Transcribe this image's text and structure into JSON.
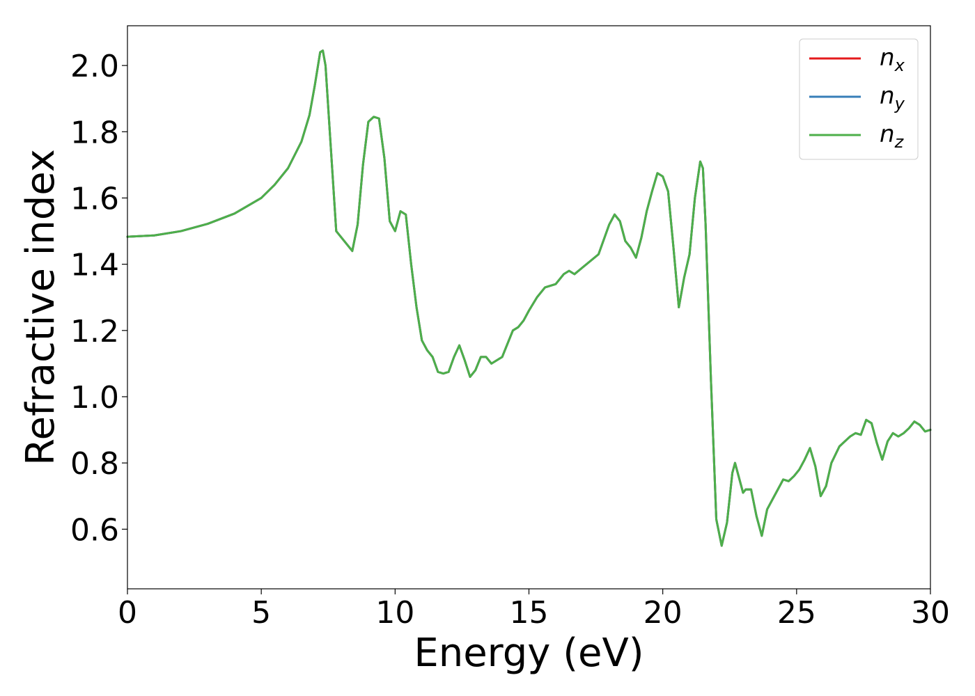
{
  "chart_data": {
    "type": "line",
    "xlabel": "Energy (eV)",
    "ylabel": "Refractive index",
    "xlim": [
      0,
      30
    ],
    "ylim": [
      0.42,
      2.12
    ],
    "xticks": [
      "0",
      "5",
      "10",
      "15",
      "20",
      "25",
      "30"
    ],
    "yticks": [
      "0.6",
      "0.8",
      "1.0",
      "1.2",
      "1.4",
      "1.6",
      "1.8",
      "2.0"
    ],
    "grid": false,
    "legend_position": "top-right",
    "series": [
      {
        "name": "n",
        "subscript": "x",
        "color": "#e41a1c",
        "x": [
          0,
          1,
          2,
          3,
          4,
          5,
          5.5,
          6,
          6.5,
          6.8,
          7.0,
          7.2,
          7.3,
          7.4,
          7.6,
          7.8,
          8.0,
          8.2,
          8.4,
          8.6,
          8.8,
          9.0,
          9.2,
          9.4,
          9.6,
          9.8,
          10.0,
          10.2,
          10.4,
          10.6,
          10.8,
          11.0,
          11.2,
          11.4,
          11.6,
          11.8,
          12.0,
          12.2,
          12.4,
          12.6,
          12.8,
          13.0,
          13.2,
          13.4,
          13.6,
          13.8,
          14.0,
          14.2,
          14.4,
          14.6,
          14.8,
          15.0,
          15.3,
          15.6,
          16.0,
          16.3,
          16.5,
          16.7,
          17.0,
          17.3,
          17.6,
          18.0,
          18.2,
          18.4,
          18.6,
          18.8,
          19.0,
          19.2,
          19.4,
          19.6,
          19.8,
          20.0,
          20.2,
          20.4,
          20.6,
          20.8,
          21.0,
          21.2,
          21.4,
          21.5,
          21.6,
          21.8,
          22.0,
          22.2,
          22.4,
          22.6,
          22.7,
          22.8,
          23.0,
          23.1,
          23.3,
          23.5,
          23.7,
          23.9,
          24.1,
          24.3,
          24.5,
          24.7,
          24.9,
          25.1,
          25.3,
          25.5,
          25.7,
          25.9,
          26.1,
          26.3,
          26.6,
          27.0,
          27.2,
          27.4,
          27.6,
          27.8,
          28.0,
          28.2,
          28.4,
          28.6,
          28.8,
          29.0,
          29.2,
          29.4,
          29.6,
          29.8,
          30.0
        ],
        "y": [
          1.483,
          1.487,
          1.5,
          1.522,
          1.553,
          1.6,
          1.64,
          1.69,
          1.77,
          1.85,
          1.94,
          2.04,
          2.045,
          2.0,
          1.75,
          1.5,
          1.48,
          1.46,
          1.44,
          1.52,
          1.7,
          1.83,
          1.845,
          1.84,
          1.72,
          1.53,
          1.5,
          1.56,
          1.55,
          1.4,
          1.27,
          1.17,
          1.14,
          1.12,
          1.075,
          1.07,
          1.075,
          1.12,
          1.155,
          1.11,
          1.06,
          1.08,
          1.12,
          1.12,
          1.1,
          1.11,
          1.12,
          1.16,
          1.2,
          1.21,
          1.23,
          1.26,
          1.3,
          1.33,
          1.34,
          1.37,
          1.38,
          1.37,
          1.39,
          1.41,
          1.43,
          1.52,
          1.55,
          1.53,
          1.47,
          1.45,
          1.42,
          1.48,
          1.56,
          1.62,
          1.675,
          1.665,
          1.62,
          1.45,
          1.27,
          1.36,
          1.43,
          1.6,
          1.71,
          1.69,
          1.52,
          1.05,
          0.63,
          0.55,
          0.62,
          0.77,
          0.8,
          0.77,
          0.71,
          0.72,
          0.72,
          0.64,
          0.58,
          0.66,
          0.69,
          0.72,
          0.75,
          0.745,
          0.76,
          0.78,
          0.81,
          0.845,
          0.79,
          0.7,
          0.73,
          0.8,
          0.85,
          0.88,
          0.89,
          0.885,
          0.93,
          0.92,
          0.86,
          0.81,
          0.865,
          0.89,
          0.88,
          0.89,
          0.905,
          0.925,
          0.915,
          0.895,
          0.9
        ]
      },
      {
        "name": "n",
        "subscript": "y",
        "color": "#377eb8",
        "x": [
          0,
          1,
          2,
          3,
          4,
          5,
          5.5,
          6,
          6.5,
          6.8,
          7.0,
          7.2,
          7.3,
          7.4,
          7.6,
          7.8,
          8.0,
          8.2,
          8.4,
          8.6,
          8.8,
          9.0,
          9.2,
          9.4,
          9.6,
          9.8,
          10.0,
          10.2,
          10.4,
          10.6,
          10.8,
          11.0,
          11.2,
          11.4,
          11.6,
          11.8,
          12.0,
          12.2,
          12.4,
          12.6,
          12.8,
          13.0,
          13.2,
          13.4,
          13.6,
          13.8,
          14.0,
          14.2,
          14.4,
          14.6,
          14.8,
          15.0,
          15.3,
          15.6,
          16.0,
          16.3,
          16.5,
          16.7,
          17.0,
          17.3,
          17.6,
          18.0,
          18.2,
          18.4,
          18.6,
          18.8,
          19.0,
          19.2,
          19.4,
          19.6,
          19.8,
          20.0,
          20.2,
          20.4,
          20.6,
          20.8,
          21.0,
          21.2,
          21.4,
          21.5,
          21.6,
          21.8,
          22.0,
          22.2,
          22.4,
          22.6,
          22.7,
          22.8,
          23.0,
          23.1,
          23.3,
          23.5,
          23.7,
          23.9,
          24.1,
          24.3,
          24.5,
          24.7,
          24.9,
          25.1,
          25.3,
          25.5,
          25.7,
          25.9,
          26.1,
          26.3,
          26.6,
          27.0,
          27.2,
          27.4,
          27.6,
          27.8,
          28.0,
          28.2,
          28.4,
          28.6,
          28.8,
          29.0,
          29.2,
          29.4,
          29.6,
          29.8,
          30.0
        ],
        "y": [
          1.483,
          1.487,
          1.5,
          1.522,
          1.553,
          1.6,
          1.64,
          1.69,
          1.77,
          1.85,
          1.94,
          2.04,
          2.045,
          2.0,
          1.75,
          1.5,
          1.48,
          1.46,
          1.44,
          1.52,
          1.7,
          1.83,
          1.845,
          1.84,
          1.72,
          1.53,
          1.5,
          1.56,
          1.55,
          1.4,
          1.27,
          1.17,
          1.14,
          1.12,
          1.075,
          1.07,
          1.075,
          1.12,
          1.155,
          1.11,
          1.06,
          1.08,
          1.12,
          1.12,
          1.1,
          1.11,
          1.12,
          1.16,
          1.2,
          1.21,
          1.23,
          1.26,
          1.3,
          1.33,
          1.34,
          1.37,
          1.38,
          1.37,
          1.39,
          1.41,
          1.43,
          1.52,
          1.55,
          1.53,
          1.47,
          1.45,
          1.42,
          1.48,
          1.56,
          1.62,
          1.675,
          1.665,
          1.62,
          1.45,
          1.27,
          1.36,
          1.43,
          1.6,
          1.71,
          1.69,
          1.52,
          1.05,
          0.63,
          0.55,
          0.62,
          0.77,
          0.8,
          0.77,
          0.71,
          0.72,
          0.72,
          0.64,
          0.58,
          0.66,
          0.69,
          0.72,
          0.75,
          0.745,
          0.76,
          0.78,
          0.81,
          0.845,
          0.79,
          0.7,
          0.73,
          0.8,
          0.85,
          0.88,
          0.89,
          0.885,
          0.93,
          0.92,
          0.86,
          0.81,
          0.865,
          0.89,
          0.88,
          0.89,
          0.905,
          0.925,
          0.915,
          0.895,
          0.9
        ]
      },
      {
        "name": "n",
        "subscript": "z",
        "color": "#4daf4a",
        "x": [
          0,
          1,
          2,
          3,
          4,
          5,
          5.5,
          6,
          6.5,
          6.8,
          7.0,
          7.2,
          7.3,
          7.4,
          7.6,
          7.8,
          8.0,
          8.2,
          8.4,
          8.6,
          8.8,
          9.0,
          9.2,
          9.4,
          9.6,
          9.8,
          10.0,
          10.2,
          10.4,
          10.6,
          10.8,
          11.0,
          11.2,
          11.4,
          11.6,
          11.8,
          12.0,
          12.2,
          12.4,
          12.6,
          12.8,
          13.0,
          13.2,
          13.4,
          13.6,
          13.8,
          14.0,
          14.2,
          14.4,
          14.6,
          14.8,
          15.0,
          15.3,
          15.6,
          16.0,
          16.3,
          16.5,
          16.7,
          17.0,
          17.3,
          17.6,
          18.0,
          18.2,
          18.4,
          18.6,
          18.8,
          19.0,
          19.2,
          19.4,
          19.6,
          19.8,
          20.0,
          20.2,
          20.4,
          20.6,
          20.8,
          21.0,
          21.2,
          21.4,
          21.5,
          21.6,
          21.8,
          22.0,
          22.2,
          22.4,
          22.6,
          22.7,
          22.8,
          23.0,
          23.1,
          23.3,
          23.5,
          23.7,
          23.9,
          24.1,
          24.3,
          24.5,
          24.7,
          24.9,
          25.1,
          25.3,
          25.5,
          25.7,
          25.9,
          26.1,
          26.3,
          26.6,
          27.0,
          27.2,
          27.4,
          27.6,
          27.8,
          28.0,
          28.2,
          28.4,
          28.6,
          28.8,
          29.0,
          29.2,
          29.4,
          29.6,
          29.8,
          30.0
        ],
        "y": [
          1.483,
          1.487,
          1.5,
          1.522,
          1.553,
          1.6,
          1.64,
          1.69,
          1.77,
          1.85,
          1.94,
          2.04,
          2.045,
          2.0,
          1.75,
          1.5,
          1.48,
          1.46,
          1.44,
          1.52,
          1.7,
          1.83,
          1.845,
          1.84,
          1.72,
          1.53,
          1.5,
          1.56,
          1.55,
          1.4,
          1.27,
          1.17,
          1.14,
          1.12,
          1.075,
          1.07,
          1.075,
          1.12,
          1.155,
          1.11,
          1.06,
          1.08,
          1.12,
          1.12,
          1.1,
          1.11,
          1.12,
          1.16,
          1.2,
          1.21,
          1.23,
          1.26,
          1.3,
          1.33,
          1.34,
          1.37,
          1.38,
          1.37,
          1.39,
          1.41,
          1.43,
          1.52,
          1.55,
          1.53,
          1.47,
          1.45,
          1.42,
          1.48,
          1.56,
          1.62,
          1.675,
          1.665,
          1.62,
          1.45,
          1.27,
          1.36,
          1.43,
          1.6,
          1.71,
          1.69,
          1.52,
          1.05,
          0.63,
          0.55,
          0.62,
          0.77,
          0.8,
          0.77,
          0.71,
          0.72,
          0.72,
          0.64,
          0.58,
          0.66,
          0.69,
          0.72,
          0.75,
          0.745,
          0.76,
          0.78,
          0.81,
          0.845,
          0.79,
          0.7,
          0.73,
          0.8,
          0.85,
          0.88,
          0.89,
          0.885,
          0.93,
          0.92,
          0.86,
          0.81,
          0.865,
          0.89,
          0.88,
          0.89,
          0.905,
          0.925,
          0.915,
          0.895,
          0.9
        ]
      }
    ]
  }
}
